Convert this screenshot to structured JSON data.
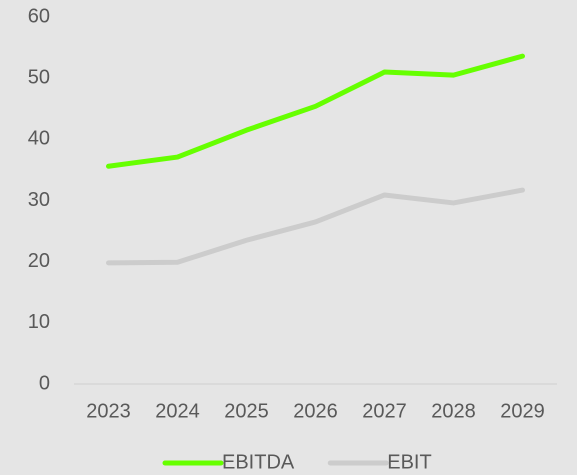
{
  "chart_data": {
    "type": "line",
    "categories": [
      "2023",
      "2024",
      "2025",
      "2026",
      "2027",
      "2028",
      "2029"
    ],
    "series": [
      {
        "name": "EBITDA",
        "color": "#66ff00",
        "values": [
          35.6,
          37.1,
          41.5,
          45.4,
          51.0,
          50.5,
          53.6
        ]
      },
      {
        "name": "EBIT",
        "color": "#cccccc",
        "values": [
          19.8,
          19.9,
          23.5,
          26.5,
          30.9,
          29.6,
          31.7
        ]
      }
    ],
    "ylim": [
      0,
      60
    ],
    "yticks": [
      0,
      10,
      20,
      30,
      40,
      50,
      60
    ],
    "grid": false,
    "legend": "bottom"
  }
}
